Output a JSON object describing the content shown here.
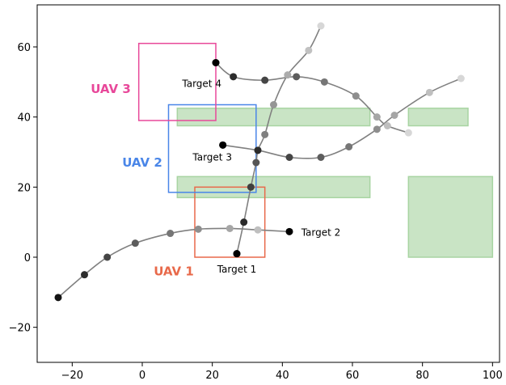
{
  "chart_data": {
    "type": "scatter",
    "title": "",
    "xlabel": "",
    "ylabel": "",
    "xlim": [
      -30,
      102
    ],
    "ylim": [
      -30,
      72
    ],
    "xticks": [
      -20,
      0,
      20,
      40,
      60,
      80,
      100
    ],
    "yticks": [
      -20,
      0,
      20,
      40,
      60
    ],
    "xtick_labels": [
      "−20",
      "0",
      "20",
      "40",
      "60",
      "80",
      "100"
    ],
    "ytick_labels": [
      "−20",
      "0",
      "20",
      "40",
      "60"
    ],
    "grid": false,
    "obstacles": [
      {
        "x0": 10,
        "x1": 65,
        "y0": 37.5,
        "y1": 42.5
      },
      {
        "x0": 76,
        "x1": 93,
        "y0": 37.5,
        "y1": 42.5
      },
      {
        "x0": 10,
        "x1": 65,
        "y0": 17,
        "y1": 23
      },
      {
        "x0": 76,
        "x1": 100,
        "y0": 0,
        "y1": 23
      }
    ],
    "uavs": [
      {
        "label": "UAV 1",
        "color": "#e8694a",
        "box": {
          "x0": 15,
          "x1": 35,
          "y0": 0,
          "y1": 20
        },
        "label_at": [
          9,
          -4
        ]
      },
      {
        "label": "UAV 2",
        "color": "#4a86e8",
        "box": {
          "x0": 7.5,
          "x1": 32.5,
          "y0": 18.5,
          "y1": 43.5
        },
        "label_at": [
          0,
          27
        ]
      },
      {
        "label": "UAV 3",
        "color": "#e8489a",
        "box": {
          "x0": -1,
          "x1": 21,
          "y0": 39,
          "y1": 61
        },
        "label_at": [
          -9,
          48
        ]
      }
    ],
    "targets": [
      {
        "label": "Target 1",
        "x": 27,
        "y": 1,
        "label_at": [
          27,
          -3.5
        ]
      },
      {
        "label": "Target 2",
        "x": 42,
        "y": 7.3,
        "label_at": [
          51,
          7
        ]
      },
      {
        "label": "Target 3",
        "x": 23,
        "y": 32,
        "label_at": [
          20,
          28.5
        ]
      },
      {
        "label": "Target 4",
        "x": 21,
        "y": 55.5,
        "label_at": [
          17,
          49.5
        ]
      }
    ],
    "series": [
      {
        "points": [
          [
            -24,
            -11.5
          ],
          [
            -16.5,
            -5
          ],
          [
            -10,
            0
          ],
          [
            -2,
            4
          ],
          [
            8,
            6.8
          ],
          [
            16,
            8
          ],
          [
            25,
            8.2
          ],
          [
            33,
            7.8
          ],
          [
            42,
            7.3
          ]
        ]
      },
      {
        "points": [
          [
            27,
            1
          ],
          [
            29,
            10
          ],
          [
            31,
            20
          ],
          [
            32.5,
            27
          ],
          [
            33,
            30.5
          ],
          [
            35,
            35
          ],
          [
            37.5,
            43.5
          ],
          [
            41.5,
            52
          ],
          [
            47.5,
            59
          ],
          [
            51,
            66
          ]
        ]
      },
      {
        "points": [
          [
            23,
            32
          ],
          [
            33,
            30.5
          ],
          [
            42,
            28.5
          ],
          [
            51,
            28.5
          ],
          [
            59,
            31.5
          ],
          [
            67,
            36.5
          ],
          [
            72,
            40.5
          ],
          [
            82,
            47
          ],
          [
            91,
            51
          ]
        ]
      },
      {
        "points": [
          [
            21,
            55.5
          ],
          [
            26,
            51.5
          ],
          [
            35,
            50.5
          ],
          [
            44,
            51.5
          ],
          [
            52,
            50
          ],
          [
            61,
            46
          ],
          [
            67,
            40
          ],
          [
            70,
            37.5
          ],
          [
            76,
            35.5
          ]
        ]
      }
    ]
  }
}
